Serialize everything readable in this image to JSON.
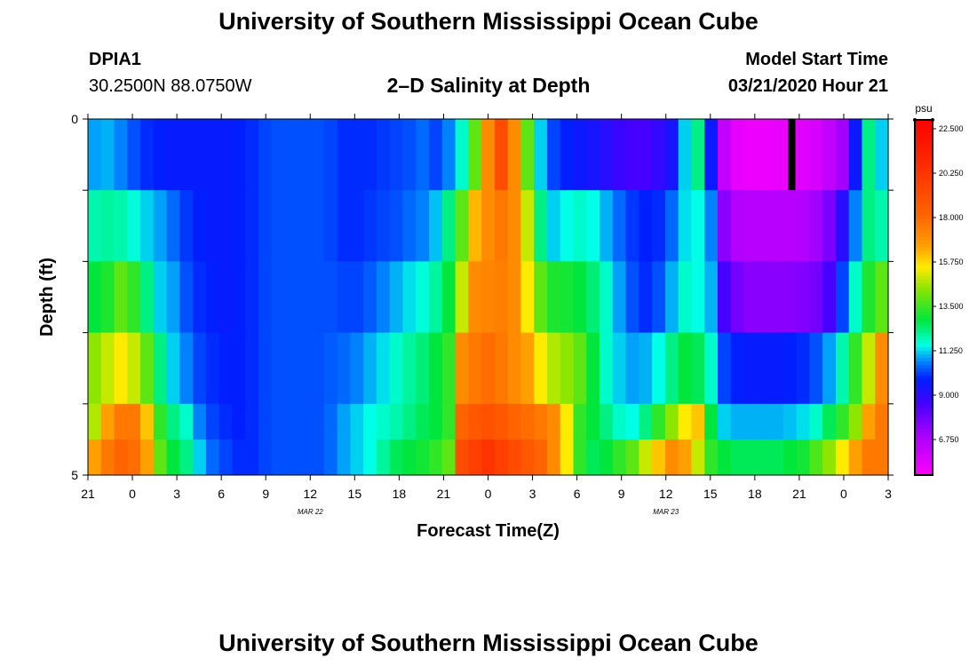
{
  "header": {
    "title": "University of Southern Mississippi Ocean Cube",
    "station_id": "DPIA1",
    "station_coords": "30.2500N 88.0750W",
    "plot_title": "2–D Salinity at Depth",
    "start_label": "Model Start Time",
    "start_value": "03/21/2020 Hour 21"
  },
  "footer": {
    "title": "University of Southern Mississippi Ocean Cube"
  },
  "chart_data": {
    "type": "heatmap",
    "title": "2–D Salinity at Depth",
    "xlabel": "Forecast Time(Z)",
    "ylabel": "Depth (ft)",
    "ylim": [
      0,
      5
    ],
    "y_tick_labels": [
      "0",
      "5"
    ],
    "x_tick_labels": [
      "21",
      "0",
      "3",
      "6",
      "9",
      "12",
      "15",
      "18",
      "21",
      "0",
      "3",
      "6",
      "9",
      "12",
      "15",
      "18",
      "21",
      "0",
      "3"
    ],
    "date_labels": [
      {
        "text": "MAR 22",
        "at_tick": 5
      },
      {
        "text": "MAR 23",
        "at_tick": 13
      }
    ],
    "colorbar": {
      "unit": "psu",
      "tick_labels": [
        "22.500",
        "20.250",
        "18.000",
        "15.750",
        "13.500",
        "11.250",
        "9.000",
        "6.750"
      ],
      "range": [
        5.625,
        22.5
      ]
    },
    "x_hours": [
      0,
      3,
      6,
      9,
      12,
      15,
      18,
      21,
      24,
      27,
      30,
      33,
      36,
      39,
      42,
      45,
      48,
      51,
      54
    ],
    "depth_bands": [
      {
        "top": 0,
        "bottom": 1,
        "values": [
          11.2,
          11.3,
          11.0,
          10.6,
          10.3,
          10.2,
          10.1,
          10.1,
          10.1,
          10.1,
          10.1,
          10.2,
          10.3,
          10.5,
          10.6,
          10.6,
          10.6,
          10.6,
          10.5,
          10.3,
          10.3,
          10.3,
          10.4,
          10.5,
          10.6,
          10.8,
          10.5,
          11.0,
          12.0,
          14.0,
          17.0,
          19.0,
          17.0,
          14.0,
          11.5,
          10.5,
          10.2,
          10.0,
          9.8,
          9.5,
          9.2,
          9.0,
          9.0,
          9.3,
          9.8,
          11.5,
          12.5,
          10.0,
          7.0,
          6.2,
          6.0,
          6.0,
          6.1,
          6.1,
          6.3,
          6.5,
          7.0,
          7.6,
          10.0,
          12.5,
          11.5
        ]
      },
      {
        "top": 1,
        "bottom": 2,
        "values": [
          12.2,
          12.3,
          12.2,
          11.9,
          11.5,
          11.2,
          10.8,
          10.4,
          10.2,
          10.1,
          10.1,
          10.2,
          10.3,
          10.5,
          10.6,
          10.6,
          10.6,
          10.6,
          10.5,
          10.3,
          10.3,
          10.4,
          10.5,
          10.6,
          10.8,
          11.0,
          11.4,
          12.5,
          14.0,
          16.2,
          17.0,
          17.5,
          17.0,
          15.0,
          12.5,
          11.5,
          11.8,
          12.0,
          11.8,
          11.3,
          10.8,
          10.4,
          10.2,
          10.3,
          10.8,
          11.6,
          11.8,
          11.0,
          8.0,
          7.3,
          7.2,
          7.2,
          7.2,
          7.2,
          7.3,
          7.6,
          8.2,
          9.5,
          11.0,
          12.5,
          12.2
        ]
      },
      {
        "top": 2,
        "bottom": 3,
        "values": [
          13.0,
          13.3,
          14.0,
          13.5,
          12.5,
          11.5,
          11.2,
          10.6,
          10.3,
          10.2,
          10.1,
          10.2,
          10.3,
          10.5,
          10.6,
          10.6,
          10.6,
          10.6,
          10.6,
          10.5,
          10.5,
          10.7,
          11.0,
          11.3,
          11.6,
          11.9,
          12.3,
          13.0,
          15.0,
          17.0,
          17.2,
          17.3,
          17.0,
          15.5,
          14.0,
          13.3,
          13.2,
          13.0,
          12.6,
          12.0,
          11.2,
          10.6,
          10.3,
          10.6,
          11.3,
          12.0,
          11.8,
          11.3,
          9.0,
          8.3,
          8.0,
          8.0,
          8.0,
          8.0,
          8.1,
          8.3,
          9.0,
          10.5,
          12.0,
          13.3,
          14.0
        ]
      },
      {
        "top": 3,
        "bottom": 4,
        "values": [
          14.5,
          15.0,
          15.5,
          15.0,
          14.0,
          12.5,
          11.5,
          11.0,
          10.5,
          10.3,
          10.2,
          10.2,
          10.3,
          10.5,
          10.6,
          10.6,
          10.6,
          10.6,
          10.7,
          10.8,
          11.0,
          11.3,
          11.6,
          12.0,
          12.3,
          12.6,
          13.0,
          13.5,
          17.0,
          17.5,
          17.8,
          17.5,
          17.0,
          16.5,
          15.5,
          14.8,
          14.5,
          14.0,
          13.0,
          12.0,
          11.5,
          11.2,
          11.3,
          11.8,
          12.5,
          13.0,
          12.8,
          12.0,
          10.5,
          10.2,
          10.1,
          10.1,
          10.1,
          10.2,
          10.3,
          10.6,
          11.2,
          12.2,
          13.5,
          15.0,
          17.0
        ]
      },
      {
        "top": 4,
        "bottom": 4.5,
        "values": [
          14.8,
          16.5,
          17.5,
          17.5,
          16.0,
          13.5,
          12.5,
          12.0,
          11.0,
          10.5,
          10.3,
          10.2,
          10.3,
          10.5,
          10.6,
          10.6,
          10.6,
          10.6,
          10.8,
          11.2,
          11.5,
          11.8,
          12.0,
          12.2,
          12.5,
          12.8,
          13.0,
          13.5,
          18.0,
          18.5,
          18.8,
          18.5,
          18.0,
          17.8,
          17.5,
          17.0,
          15.5,
          13.5,
          13.0,
          12.5,
          12.0,
          11.8,
          12.5,
          13.5,
          14.5,
          15.5,
          16.0,
          13.0,
          11.5,
          11.3,
          11.3,
          11.3,
          11.3,
          11.4,
          11.6,
          12.0,
          12.8,
          13.5,
          14.5,
          16.5,
          17.5
        ]
      },
      {
        "top": 4.5,
        "bottom": 5,
        "values": [
          16.5,
          17.5,
          18.0,
          17.8,
          16.5,
          14.0,
          13.0,
          12.5,
          11.5,
          10.8,
          10.5,
          10.3,
          10.3,
          10.5,
          10.6,
          10.6,
          10.6,
          10.6,
          10.8,
          11.2,
          11.5,
          11.8,
          12.3,
          12.8,
          13.0,
          13.2,
          13.5,
          14.0,
          19.0,
          19.5,
          20.0,
          19.5,
          19.0,
          18.5,
          18.0,
          17.0,
          15.5,
          13.5,
          12.8,
          13.0,
          13.5,
          14.0,
          15.0,
          16.0,
          17.0,
          16.5,
          15.0,
          13.5,
          13.0,
          12.8,
          12.8,
          12.8,
          12.8,
          13.0,
          13.2,
          13.8,
          14.5,
          15.5,
          16.5,
          17.5,
          17.5
        ]
      }
    ],
    "marker": {
      "type": "vertical-bar",
      "color": "#000000",
      "at_hour": 47.5,
      "depth_band": 0
    },
    "axis_color": "#000000"
  }
}
